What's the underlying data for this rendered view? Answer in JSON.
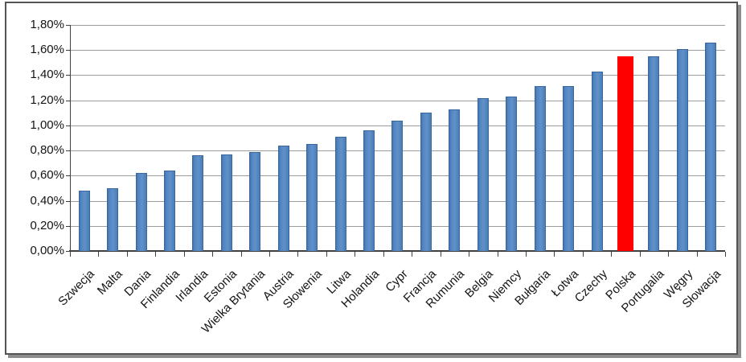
{
  "chart_data": {
    "type": "bar",
    "title": "",
    "xlabel": "",
    "ylabel": "",
    "categories": [
      "Szwecja",
      "Malta",
      "Dania",
      "Finlandia",
      "Irlandia",
      "Estonia",
      "Wielka Brytania",
      "Austria",
      "Słowenia",
      "Litwa",
      "Holandia",
      "Cypr",
      "Francja",
      "Rumunia",
      "Belgia",
      "Niemcy",
      "Bułgaria",
      "Łotwa",
      "Czechy",
      "Polska",
      "Portugalia",
      "Węgry",
      "Słowacja"
    ],
    "values": [
      0.48,
      0.5,
      0.62,
      0.64,
      0.76,
      0.77,
      0.79,
      0.84,
      0.85,
      0.91,
      0.96,
      1.04,
      1.1,
      1.13,
      1.22,
      1.23,
      1.31,
      1.31,
      1.43,
      1.55,
      1.55,
      1.61,
      1.66
    ],
    "value_unit": "%",
    "ylim": [
      0,
      1.8
    ],
    "y_tick_values": [
      1.8,
      1.6,
      1.4,
      1.2,
      1.0,
      0.8,
      0.6,
      0.4,
      0.2,
      0.0
    ],
    "y_tick_labels": [
      "1,80%",
      "1,60%",
      "1,40%",
      "1,20%",
      "1,00%",
      "0,80%",
      "0,60%",
      "0,40%",
      "0,20%",
      "0,00%"
    ],
    "grid": true,
    "legend_position": "none",
    "highlighted_category": "Polska",
    "colors": {
      "bar": "#4f81bd",
      "bar_border": "#39689e",
      "highlight_bar": "#fe0000",
      "gridline": "#9b9b9b",
      "axis": "#3f3f3f",
      "frame_border": "#545454",
      "frame_shadow": "#8d8d8d",
      "text": "#141414"
    }
  }
}
